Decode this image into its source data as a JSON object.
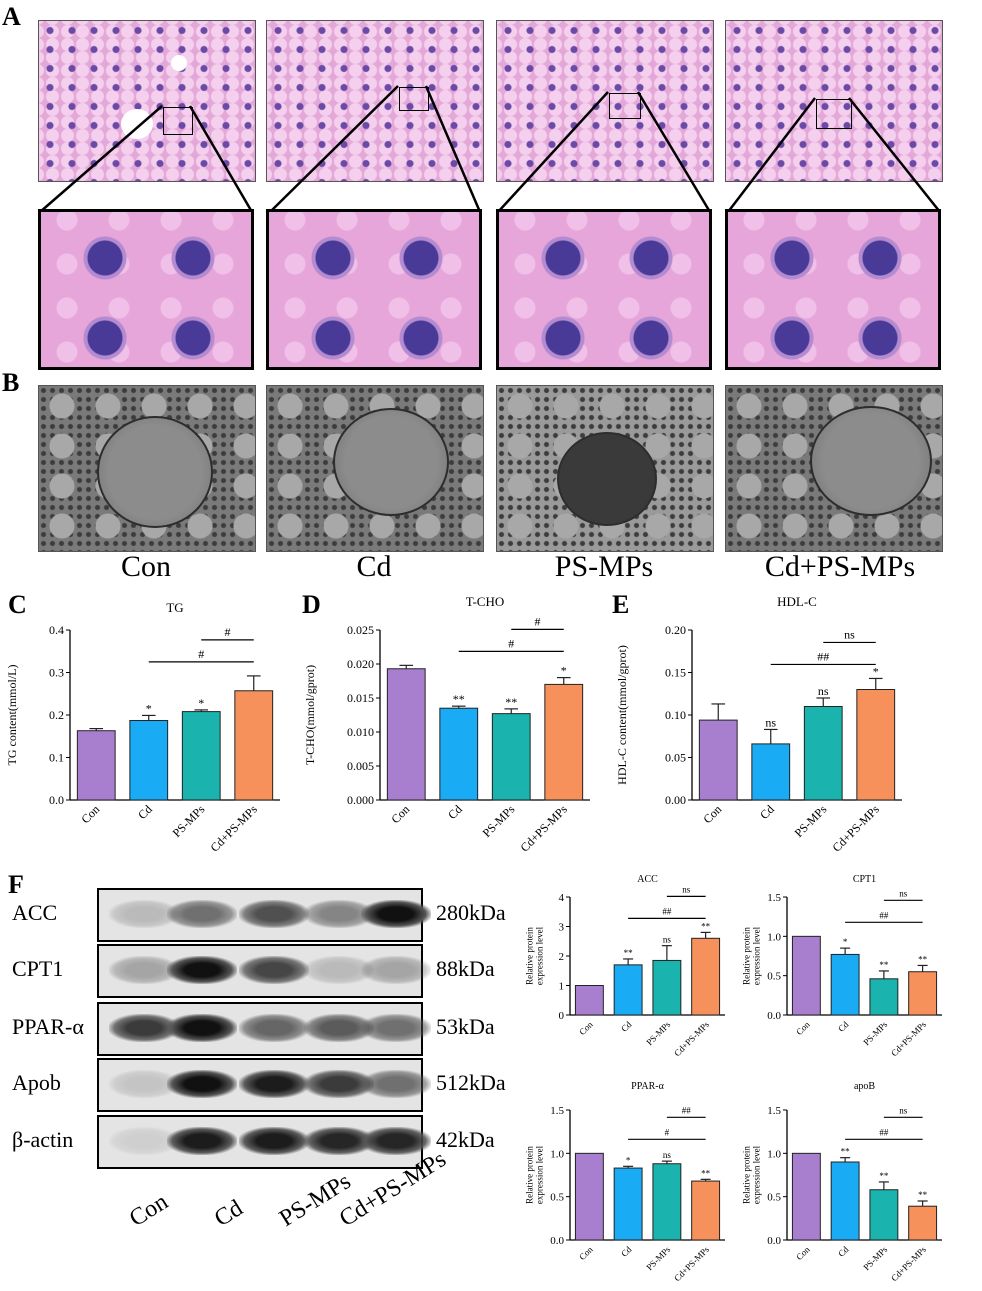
{
  "panels": {
    "a": "A",
    "b": "B",
    "c": "C",
    "d": "D",
    "e": "E",
    "f": "F"
  },
  "groups": [
    "Con",
    "Cd",
    "PS-MPs",
    "Cd+PS-MPs"
  ],
  "colors": {
    "Con": "#a87fcf",
    "Cd": "#1aabf5",
    "PS-MPs": "#1ab3ad",
    "Cd+PS-MPs": "#f7915b"
  },
  "blot": {
    "rows": [
      {
        "label": "ACC",
        "kda": "280kDa",
        "intensity": [
          0.2,
          0.55,
          0.7,
          0.45,
          1.0
        ]
      },
      {
        "label": "CPT1",
        "kda": "88kDa",
        "intensity": [
          0.3,
          1.0,
          0.75,
          0.2,
          0.3
        ]
      },
      {
        "label": "PPAR-α",
        "kda": "53kDa",
        "intensity": [
          0.8,
          1.0,
          0.6,
          0.65,
          0.55
        ]
      },
      {
        "label": "Apob",
        "kda": "512kDa",
        "intensity": [
          0.15,
          1.0,
          0.95,
          0.8,
          0.55
        ]
      },
      {
        "label": "β-actin",
        "kda": "42kDa",
        "intensity": [
          0.1,
          0.95,
          0.95,
          0.9,
          0.9
        ]
      }
    ],
    "lanes": [
      "Con",
      "Cd",
      "PS-MPs",
      "Cd+PS-MPs"
    ]
  },
  "chart_data": [
    {
      "id": "C",
      "type": "bar",
      "title": "TG",
      "ylabel": "TG content(mmol/L)",
      "categories": [
        "Con",
        "Cd",
        "PS-MPs",
        "Cd+PS-MPs"
      ],
      "values": [
        0.163,
        0.187,
        0.208,
        0.257
      ],
      "errors": [
        0.005,
        0.012,
        0.004,
        0.035
      ],
      "ylim": [
        0.0,
        0.4
      ],
      "yticks": [
        "0.0",
        "0.1",
        "0.2",
        "0.3",
        "0.4"
      ],
      "tickvals": [
        0.0,
        0.1,
        0.2,
        0.3,
        0.4
      ],
      "bar_labels": [
        "",
        "*",
        "*",
        ""
      ],
      "comparisons": [
        {
          "from": 1,
          "to": 3,
          "label": "#",
          "level": 0
        },
        {
          "from": 2,
          "to": 3,
          "label": "#",
          "level": 1
        }
      ]
    },
    {
      "id": "D",
      "type": "bar",
      "title": "T-CHO",
      "ylabel": "T-CHO(mmol/gprot)",
      "categories": [
        "Con",
        "Cd",
        "PS-MPs",
        "Cd+PS-MPs"
      ],
      "values": [
        0.0193,
        0.0135,
        0.0127,
        0.017
      ],
      "errors": [
        0.0005,
        0.0003,
        0.0007,
        0.001
      ],
      "ylim": [
        0.0,
        0.025
      ],
      "yticks": [
        "0.000",
        "0.005",
        "0.010",
        "0.015",
        "0.020",
        "0.025"
      ],
      "tickvals": [
        0.0,
        0.005,
        0.01,
        0.015,
        0.02,
        0.025
      ],
      "bar_labels": [
        "",
        "**",
        "**",
        "*"
      ],
      "comparisons": [
        {
          "from": 1,
          "to": 3,
          "label": "#",
          "level": 0
        },
        {
          "from": 2,
          "to": 3,
          "label": "#",
          "level": 1
        }
      ]
    },
    {
      "id": "E",
      "type": "bar",
      "title": "HDL-C",
      "ylabel": "HDL-C content(mmol/gprot)",
      "categories": [
        "Con",
        "Cd",
        "PS-MPs",
        "Cd+PS-MPs"
      ],
      "values": [
        0.094,
        0.066,
        0.11,
        0.13
      ],
      "errors": [
        0.019,
        0.017,
        0.01,
        0.013
      ],
      "ylim": [
        0.0,
        0.2
      ],
      "yticks": [
        "0.00",
        "0.05",
        "0.10",
        "0.15",
        "0.20"
      ],
      "tickvals": [
        0.0,
        0.05,
        0.1,
        0.15,
        0.2
      ],
      "bar_labels": [
        "",
        "ns",
        "ns",
        "*"
      ],
      "comparisons": [
        {
          "from": 1,
          "to": 3,
          "label": "##",
          "level": 0
        },
        {
          "from": 2,
          "to": 3,
          "label": "ns",
          "level": 1
        }
      ]
    },
    {
      "id": "ACC",
      "type": "bar",
      "title": "ACC",
      "ylabel": "Relative protein expression level",
      "categories": [
        "Con",
        "Cd",
        "PS-MPs",
        "Cd+PS-MPs"
      ],
      "values": [
        1.0,
        1.7,
        1.85,
        2.6
      ],
      "errors": [
        0.0,
        0.2,
        0.5,
        0.2
      ],
      "ylim": [
        0,
        4
      ],
      "yticks": [
        "0",
        "1",
        "2",
        "3",
        "4"
      ],
      "tickvals": [
        0,
        1,
        2,
        3,
        4
      ],
      "bar_labels": [
        "",
        "**",
        "ns",
        "**"
      ],
      "comparisons": [
        {
          "from": 1,
          "to": 3,
          "label": "##",
          "level": 0
        },
        {
          "from": 2,
          "to": 3,
          "label": "ns",
          "level": 1
        }
      ]
    },
    {
      "id": "CPT1",
      "type": "bar",
      "title": "CPT1",
      "ylabel": "Relative protein expression level",
      "categories": [
        "Con",
        "Cd",
        "PS-MPs",
        "Cd+PS-MPs"
      ],
      "values": [
        1.0,
        0.77,
        0.46,
        0.55
      ],
      "errors": [
        0.0,
        0.08,
        0.1,
        0.08
      ],
      "ylim": [
        0.0,
        1.5
      ],
      "yticks": [
        "0.0",
        "0.5",
        "1.0",
        "1.5"
      ],
      "tickvals": [
        0.0,
        0.5,
        1.0,
        1.5
      ],
      "bar_labels": [
        "",
        "*",
        "**",
        "**"
      ],
      "comparisons": [
        {
          "from": 1,
          "to": 3,
          "label": "##",
          "level": 0
        },
        {
          "from": 2,
          "to": 3,
          "label": "ns",
          "level": 1
        }
      ]
    },
    {
      "id": "PPAR",
      "type": "bar",
      "title": "PPAR-α",
      "ylabel": "Relative protein expression level",
      "categories": [
        "Con",
        "Cd",
        "PS-MPs",
        "Cd+PS-MPs"
      ],
      "values": [
        1.0,
        0.83,
        0.88,
        0.68
      ],
      "errors": [
        0.0,
        0.02,
        0.03,
        0.02
      ],
      "ylim": [
        0.0,
        1.5
      ],
      "yticks": [
        "0.0",
        "0.5",
        "1.0",
        "1.5"
      ],
      "tickvals": [
        0.0,
        0.5,
        1.0,
        1.5
      ],
      "bar_labels": [
        "",
        "*",
        "ns",
        "**"
      ],
      "comparisons": [
        {
          "from": 1,
          "to": 3,
          "label": "#",
          "level": 0
        },
        {
          "from": 2,
          "to": 3,
          "label": "##",
          "level": 1
        }
      ]
    },
    {
      "id": "apoB",
      "type": "bar",
      "title": "apoB",
      "ylabel": "Relative protein expression level",
      "categories": [
        "Con",
        "Cd",
        "PS-MPs",
        "Cd+PS-MPs"
      ],
      "values": [
        1.0,
        0.9,
        0.58,
        0.39
      ],
      "errors": [
        0.0,
        0.05,
        0.09,
        0.06
      ],
      "ylim": [
        0.0,
        1.5
      ],
      "yticks": [
        "0.0",
        "0.5",
        "1.0",
        "1.5"
      ],
      "tickvals": [
        0.0,
        0.5,
        1.0,
        1.5
      ],
      "bar_labels": [
        "",
        "**",
        "**",
        "**"
      ],
      "comparisons": [
        {
          "from": 1,
          "to": 3,
          "label": "##",
          "level": 0
        },
        {
          "from": 2,
          "to": 3,
          "label": "ns",
          "level": 1
        }
      ]
    }
  ]
}
